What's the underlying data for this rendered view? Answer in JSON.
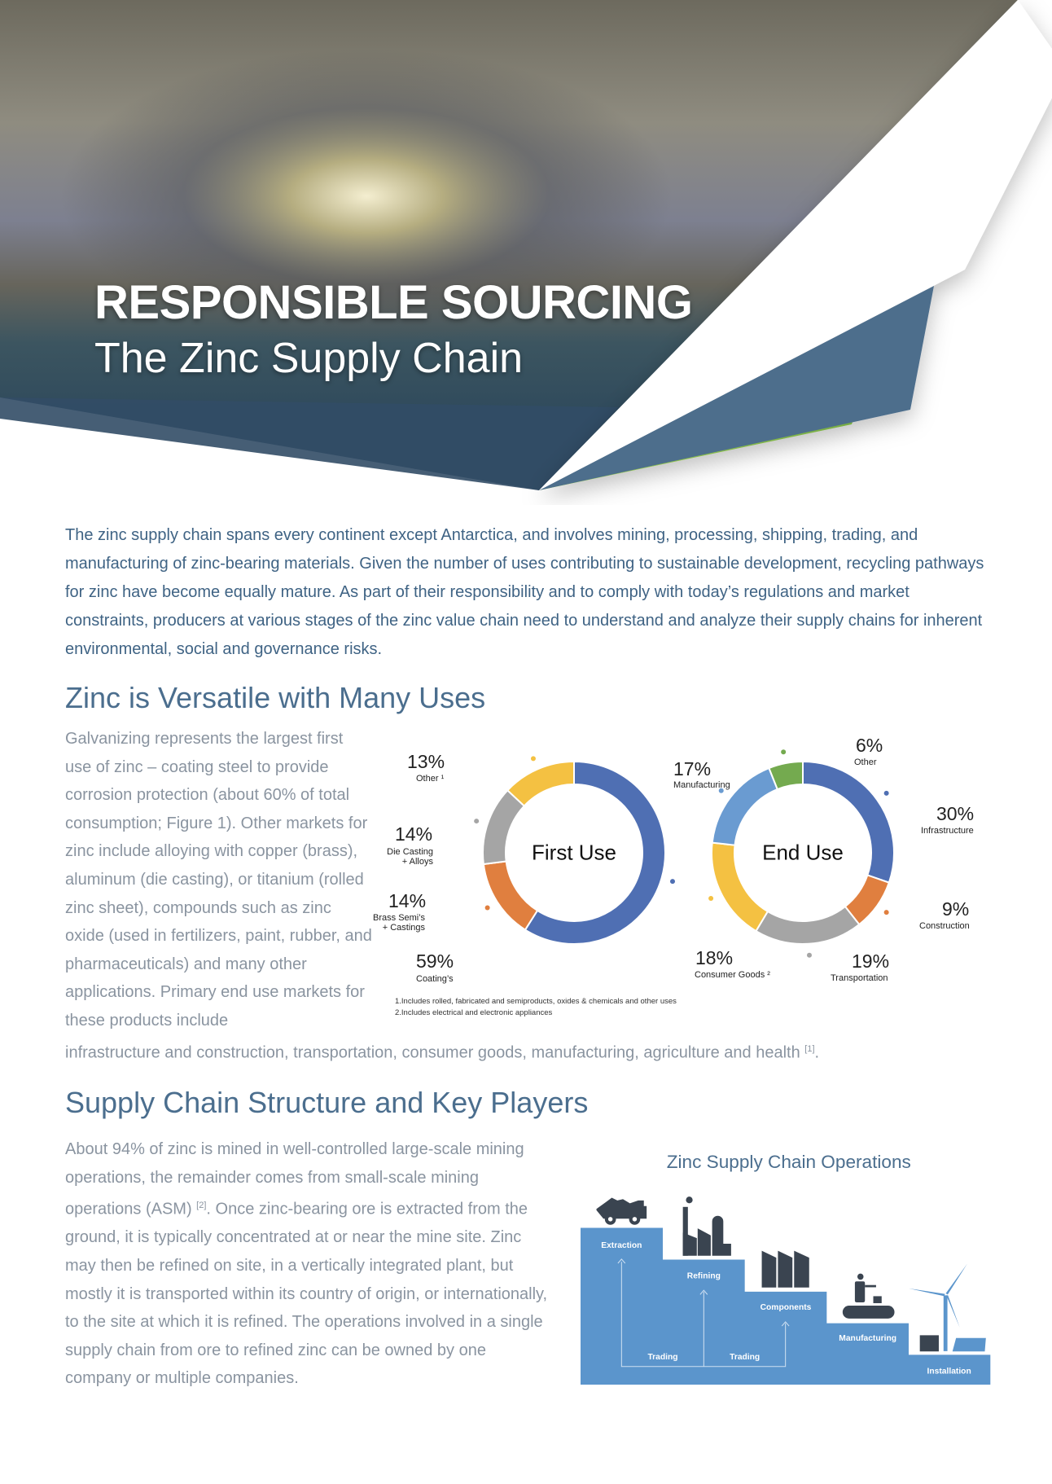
{
  "hero": {
    "title": "RESPONSIBLE SOURCING",
    "subtitle": "The Zinc Supply Chain"
  },
  "intro": "The zinc supply chain spans every continent except Antarctica, and involves mining, processing, shipping, trading, and manufacturing of zinc-bearing materials. Given the number of uses contributing to sustainable development, recycling pathways for zinc have become equally mature. As part of their responsibility and to comply with today’s regulations and market constraints, producers at various stages of the zinc value chain need to understand and analyze their supply chains for inherent environmental, social and governance risks.",
  "uses": {
    "heading": "Zinc is Versatile with Many Uses",
    "text_narrow": "Galvanizing represents the largest first use of zinc – coating steel to provide corrosion protection (about 60% of total consumption; Figure 1). Other markets for zinc include alloying with copper (brass), aluminum (die casting), or titanium (rolled zinc sheet), compounds such as zinc oxide (used in fertilizers, paint, rubber, and pharmaceuticals) and many other applications. Primary end use markets for these products include",
    "text_wide": "infrastructure and construction, transportation, consumer goods, manufacturing, agriculture and health",
    "text_ref": "[1]",
    "text_end": "."
  },
  "chart_data": [
    {
      "type": "pie",
      "donut": true,
      "title": "First Use",
      "categories": [
        "Coating’s",
        "Brass Semi’s + Castings",
        "Die Casting + Alloys",
        "Other ¹"
      ],
      "values": [
        59,
        14,
        14,
        13
      ],
      "labels": [
        "59%",
        "14%",
        "14%",
        "13%"
      ],
      "colors": [
        "#4f6fb3",
        "#e07f3f",
        "#a5a5a5",
        "#f4c142"
      ]
    },
    {
      "type": "pie",
      "donut": true,
      "title": "End Use",
      "categories": [
        "Infrastructure",
        "Construction",
        "Transportation",
        "Consumer Goods ²",
        "Manufacturing",
        "Other"
      ],
      "values": [
        30,
        9,
        19,
        18,
        17,
        6
      ],
      "labels": [
        "30%",
        "9%",
        "19%",
        "18%",
        "17%",
        "6%"
      ],
      "colors": [
        "#4f6fb3",
        "#e07f3f",
        "#a5a5a5",
        "#f4c142",
        "#6a9bd1",
        "#74aa4f"
      ]
    }
  ],
  "footnotes": [
    "1.Includes rolled, fabricated and semiproducts, oxides & chemicals and other uses",
    "2.Includes electrical and electronic appliances"
  ],
  "supply": {
    "heading": "Supply Chain Structure and Key Players",
    "text_a": "About 94% of zinc is mined in well-controlled large-scale mining operations, the remainder comes from small-scale mining operations (ASM) ",
    "text_ref": "[2]",
    "text_b": ". Once zinc-bearing ore is extracted from the ground, it is typically concentrated at or near the mine site. Zinc may then be refined on site, in a vertically integrated plant, but mostly it is transported within its country of origin, or internationally, to the site at which it is refined. The operations involved in a single supply chain from ore to refined zinc can be owned by one company or multiple companies."
  },
  "diagram": {
    "title": "Zinc Supply Chain Operations",
    "steps": [
      "Extraction",
      "Refining",
      "Components",
      "Manufacturing",
      "Installation"
    ],
    "trading": [
      "Trading",
      "Trading"
    ],
    "icons": [
      "mining-truck-icon",
      "refinery-icon",
      "factory-icon",
      "conveyor-worker-icon",
      "wind-solar-icon"
    ],
    "colors": {
      "step": "#5b95cc",
      "icon": "#3a4450"
    }
  },
  "colors": {
    "accent_blue": "#4b6e8e",
    "accent_green": "#7ab648",
    "strip_blue": "#4d6e8c"
  }
}
